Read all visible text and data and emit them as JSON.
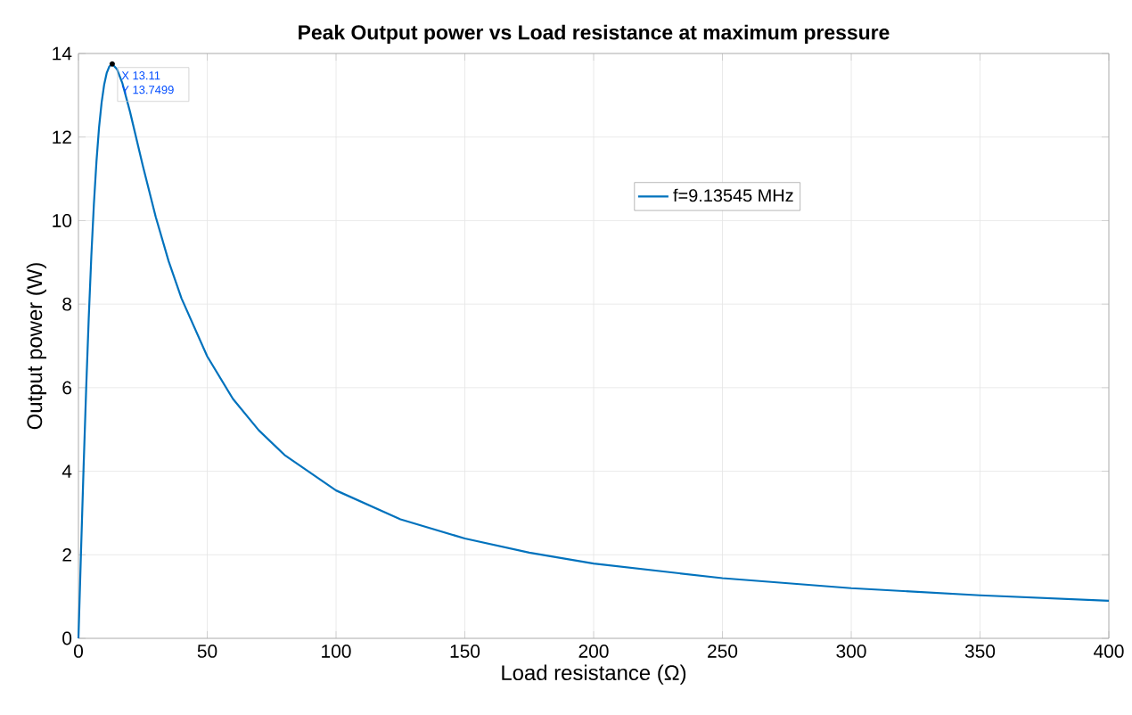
{
  "chart_data": {
    "type": "line",
    "title": "Peak Output power vs Load resistance at maximum pressure",
    "xlabel": "Load resistance (Ω)",
    "ylabel": "Output power (W)",
    "series": [
      {
        "name": "f=9.13545 MHz",
        "color": "#0072bd",
        "x": [
          0,
          1,
          2,
          3,
          4,
          5,
          6,
          7,
          8,
          9,
          10,
          11,
          12,
          13.11,
          15,
          17,
          20,
          25,
          30,
          35,
          40,
          50,
          60,
          70,
          80,
          100,
          125,
          150,
          175,
          200,
          250,
          300,
          350,
          400
        ],
        "values": [
          0,
          2.08,
          4.1,
          5.98,
          7.67,
          9.15,
          10.4,
          11.42,
          12.23,
          12.83,
          13.26,
          13.54,
          13.69,
          13.7499,
          13.62,
          13.3,
          12.61,
          11.31,
          10.09,
          9.03,
          8.14,
          6.75,
          5.73,
          4.98,
          4.39,
          3.54,
          2.85,
          2.39,
          2.05,
          1.79,
          1.44,
          1.2,
          1.03,
          0.9
        ]
      }
    ],
    "xlim": [
      0,
      400
    ],
    "ylim": [
      0,
      14
    ],
    "xticks": [
      0,
      50,
      100,
      150,
      200,
      250,
      300,
      350,
      400
    ],
    "yticks": [
      0,
      2,
      4,
      6,
      8,
      10,
      12,
      14
    ],
    "grid": true,
    "legend": "top",
    "marker": "none",
    "line_style": "solid",
    "annotations": [
      {
        "text": "X 13.11",
        "x": 13.11,
        "y": 13.7499
      },
      {
        "text": "Y 13.7499",
        "x": 13.11,
        "y": 13.7499
      }
    ]
  }
}
